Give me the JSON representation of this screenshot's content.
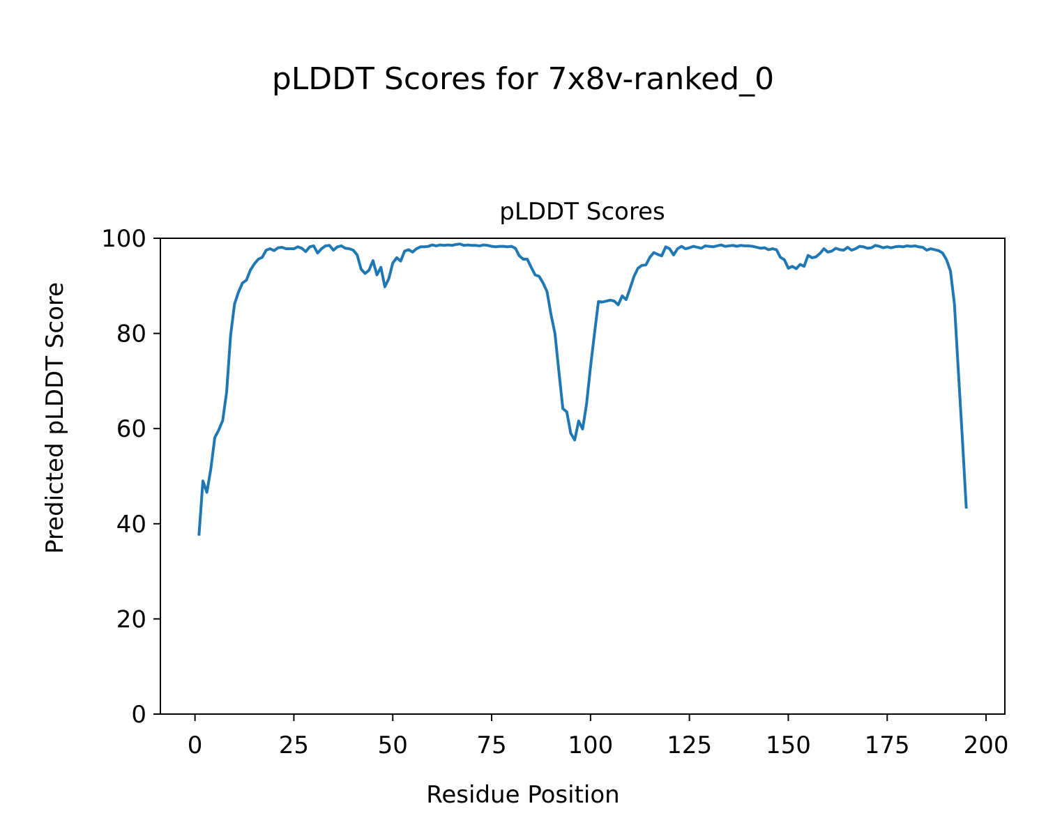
{
  "figure": {
    "suptitle": "pLDDT Scores for 7x8v-ranked_0"
  },
  "chart_data": {
    "type": "line",
    "title": "pLDDT Scores",
    "xlabel": "Residue Position",
    "ylabel": "Predicted pLDDT Score",
    "xlim": [
      -8.75,
      204.75
    ],
    "ylim": [
      0,
      100
    ],
    "xticks": [
      0,
      25,
      50,
      75,
      100,
      125,
      150,
      175,
      200
    ],
    "yticks": [
      0,
      20,
      40,
      60,
      80,
      100
    ],
    "grid": false,
    "legend": "none",
    "line_color": "#1f77b4",
    "x_start": 1,
    "x_step": 1,
    "y": [
      37.5,
      49.0,
      46.6,
      51.5,
      58.1,
      59.7,
      61.7,
      67.7,
      79.6,
      86.2,
      88.7,
      90.6,
      91.2,
      93.3,
      94.6,
      95.6,
      96.0,
      97.5,
      97.8,
      97.4,
      98.0,
      98.1,
      97.8,
      97.8,
      97.8,
      98.2,
      97.9,
      97.2,
      98.2,
      98.4,
      96.9,
      97.8,
      98.4,
      98.5,
      97.5,
      98.2,
      98.4,
      97.9,
      97.8,
      97.5,
      96.5,
      93.5,
      92.6,
      93.3,
      95.3,
      92.3,
      93.9,
      89.8,
      91.5,
      94.8,
      95.9,
      95.2,
      97.3,
      97.6,
      97.1,
      97.8,
      98.2,
      98.2,
      98.3,
      98.6,
      98.4,
      98.6,
      98.5,
      98.6,
      98.5,
      98.7,
      98.8,
      98.5,
      98.6,
      98.5,
      98.5,
      98.4,
      98.6,
      98.5,
      98.3,
      98.2,
      98.3,
      98.3,
      98.2,
      98.3,
      97.9,
      96.3,
      95.6,
      95.6,
      93.9,
      92.3,
      92.0,
      90.6,
      88.8,
      84.0,
      80.0,
      72.0,
      64.2,
      63.5,
      59.0,
      57.6,
      61.6,
      59.9,
      65.2,
      73.0,
      80.0,
      86.7,
      86.6,
      86.8,
      87.0,
      86.8,
      86.0,
      87.9,
      87.1,
      89.5,
      92.0,
      93.7,
      94.3,
      94.4,
      96.0,
      97.0,
      96.6,
      96.3,
      98.2,
      97.8,
      96.5,
      97.8,
      98.3,
      97.8,
      98.0,
      98.3,
      98.1,
      97.9,
      98.4,
      98.3,
      98.2,
      98.4,
      98.6,
      98.3,
      98.4,
      98.5,
      98.3,
      98.5,
      98.4,
      98.4,
      98.3,
      98.1,
      97.9,
      98.0,
      97.6,
      97.8,
      97.6,
      96.0,
      95.5,
      93.7,
      94.1,
      93.6,
      94.5,
      94.1,
      96.4,
      95.9,
      96.1,
      96.8,
      97.8,
      97.1,
      97.3,
      97.9,
      97.6,
      97.5,
      98.1,
      97.5,
      97.8,
      98.3,
      98.2,
      97.9,
      98.0,
      98.5,
      98.3,
      98.0,
      98.2,
      98.0,
      98.2,
      98.3,
      98.2,
      98.4,
      98.3,
      98.4,
      98.2,
      98.1,
      97.5,
      97.8,
      97.6,
      97.4,
      96.9,
      95.5,
      93.1,
      86.2,
      72.0,
      58.0,
      43.2
    ]
  }
}
